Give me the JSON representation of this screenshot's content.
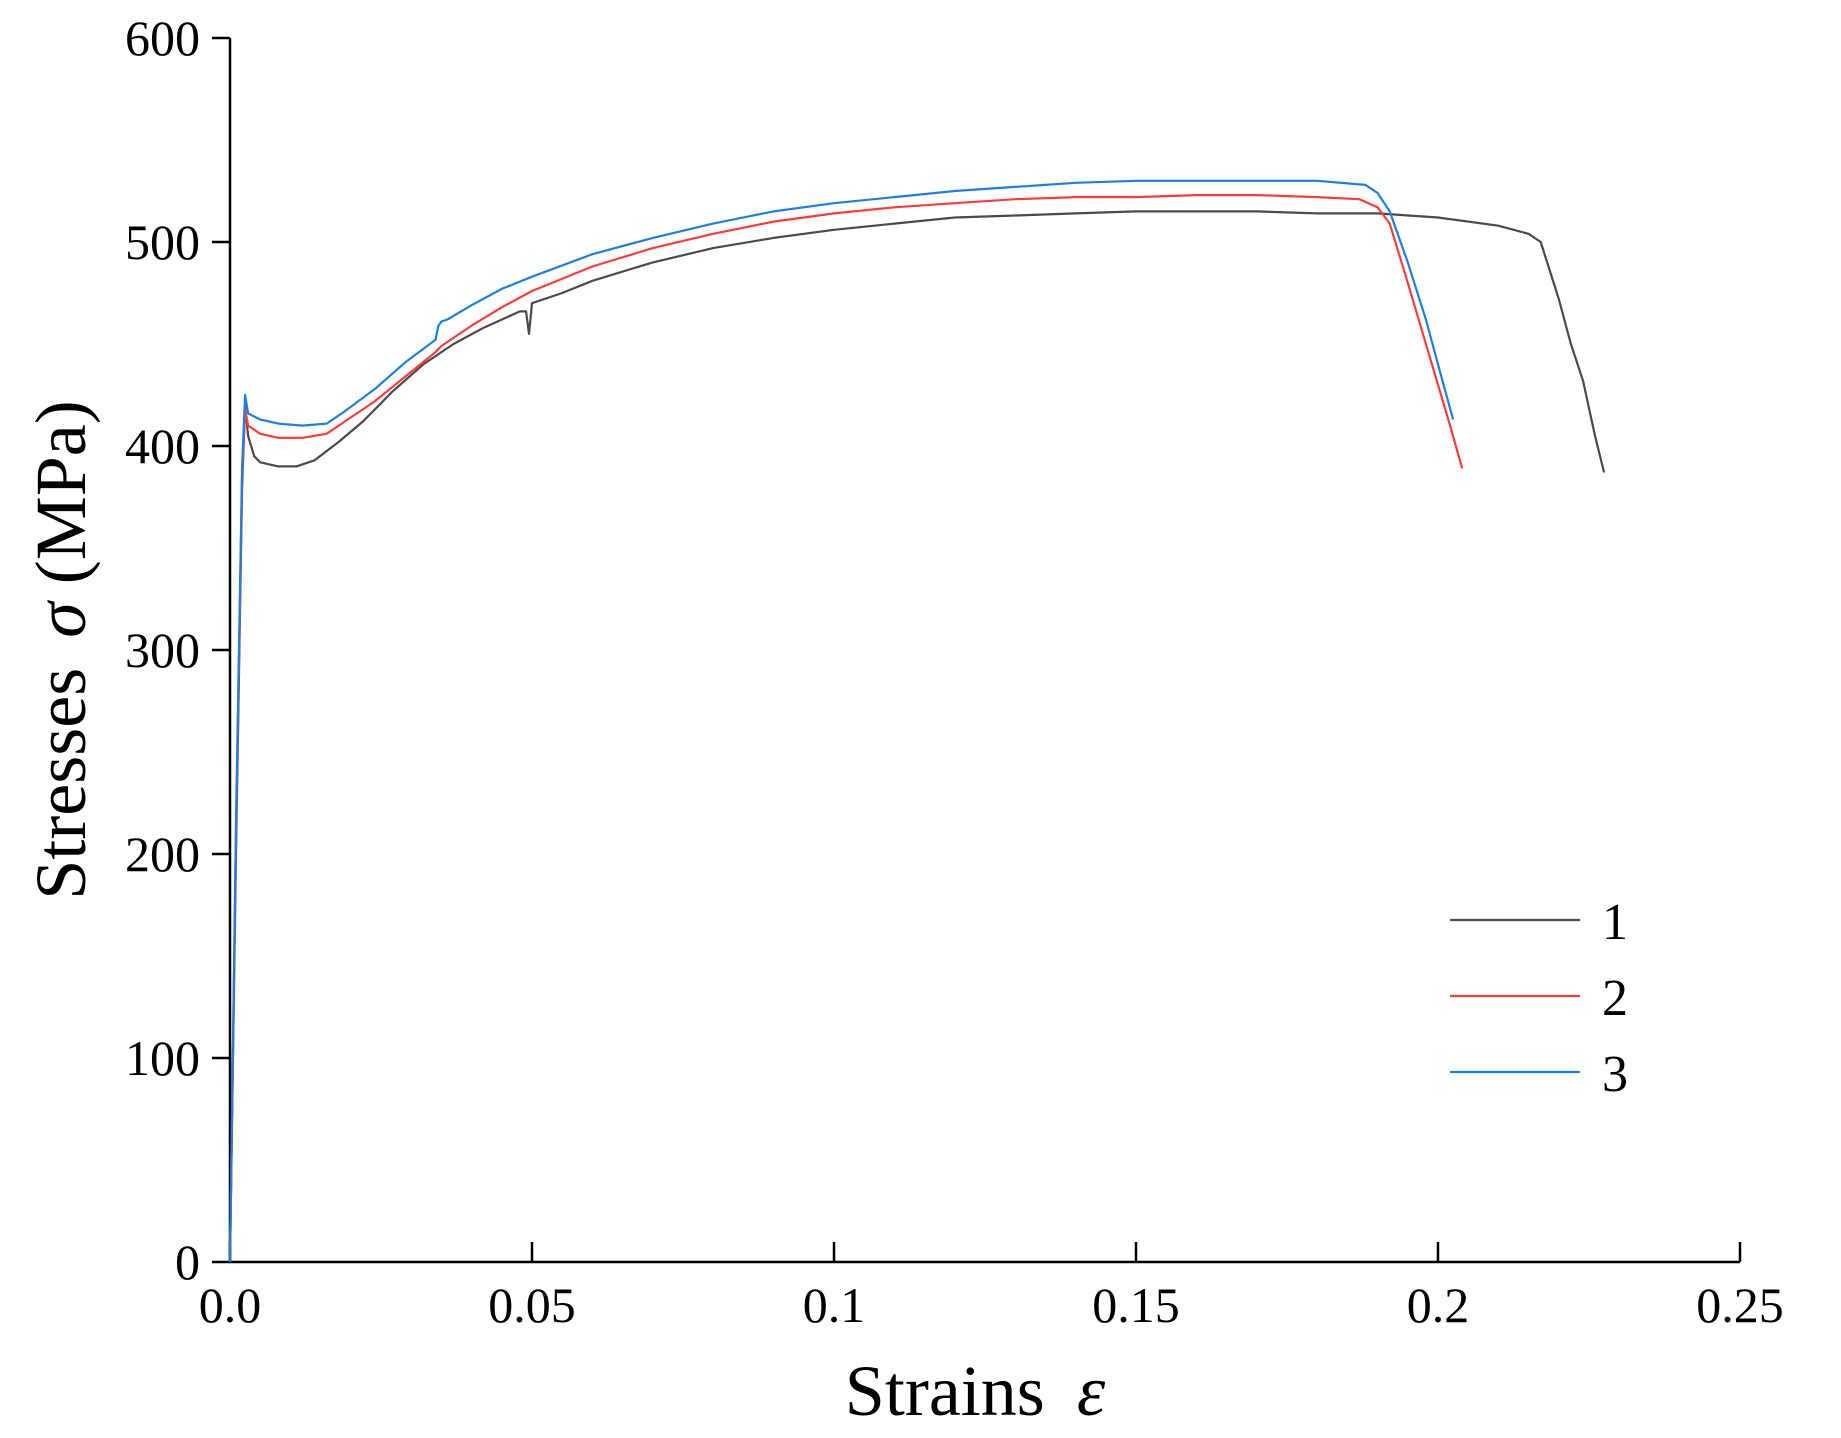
{
  "chart_data": {
    "type": "line",
    "title": "",
    "xlabel": "Strains",
    "xlabel_symbol": "ε",
    "ylabel": "Stresses",
    "ylabel_symbol": "σ",
    "ylabel_unit": "(MPa)",
    "xlim": [
      0,
      0.25
    ],
    "ylim": [
      0,
      600
    ],
    "xticks": [
      0,
      0.05,
      0.1,
      0.15,
      0.2,
      0.25
    ],
    "xtick_labels": [
      "0.0",
      "0.05",
      "0.1",
      "0.15",
      "0.2",
      "0.25"
    ],
    "yticks": [
      0,
      100,
      200,
      300,
      400,
      500,
      600
    ],
    "ytick_labels": [
      "0",
      "100",
      "200",
      "300",
      "400",
      "500",
      "600"
    ],
    "legend_position": "lower-right",
    "series": [
      {
        "name": "1",
        "color": "#4a4a4a",
        "points": [
          [
            0,
            0
          ],
          [
            0.001,
            200
          ],
          [
            0.002,
            380
          ],
          [
            0.0025,
            420
          ],
          [
            0.003,
            405
          ],
          [
            0.004,
            395
          ],
          [
            0.005,
            392
          ],
          [
            0.008,
            390
          ],
          [
            0.011,
            390
          ],
          [
            0.014,
            393
          ],
          [
            0.018,
            402
          ],
          [
            0.022,
            412
          ],
          [
            0.027,
            427
          ],
          [
            0.032,
            440
          ],
          [
            0.037,
            450
          ],
          [
            0.042,
            458
          ],
          [
            0.048,
            466
          ],
          [
            0.049,
            466
          ],
          [
            0.0495,
            455
          ],
          [
            0.05,
            470
          ],
          [
            0.055,
            475
          ],
          [
            0.06,
            481
          ],
          [
            0.07,
            490
          ],
          [
            0.08,
            497
          ],
          [
            0.09,
            502
          ],
          [
            0.1,
            506
          ],
          [
            0.11,
            509
          ],
          [
            0.12,
            512
          ],
          [
            0.13,
            513
          ],
          [
            0.14,
            514
          ],
          [
            0.15,
            515
          ],
          [
            0.16,
            515
          ],
          [
            0.17,
            515
          ],
          [
            0.18,
            514
          ],
          [
            0.19,
            514
          ],
          [
            0.2,
            512
          ],
          [
            0.21,
            508
          ],
          [
            0.215,
            504
          ],
          [
            0.217,
            500
          ],
          [
            0.22,
            472
          ],
          [
            0.222,
            450
          ],
          [
            0.224,
            432
          ],
          [
            0.226,
            405
          ],
          [
            0.2275,
            387
          ]
        ]
      },
      {
        "name": "2",
        "color": "#ff3b3b",
        "points": [
          [
            0,
            0
          ],
          [
            0.001,
            210
          ],
          [
            0.002,
            385
          ],
          [
            0.0025,
            418
          ],
          [
            0.003,
            410
          ],
          [
            0.005,
            406
          ],
          [
            0.008,
            404
          ],
          [
            0.012,
            404
          ],
          [
            0.016,
            406
          ],
          [
            0.019,
            412
          ],
          [
            0.024,
            422
          ],
          [
            0.029,
            434
          ],
          [
            0.034,
            446
          ],
          [
            0.035,
            449
          ],
          [
            0.04,
            459
          ],
          [
            0.045,
            468
          ],
          [
            0.05,
            476
          ],
          [
            0.06,
            488
          ],
          [
            0.07,
            497
          ],
          [
            0.08,
            504
          ],
          [
            0.09,
            510
          ],
          [
            0.1,
            514
          ],
          [
            0.11,
            517
          ],
          [
            0.12,
            519
          ],
          [
            0.13,
            521
          ],
          [
            0.14,
            522
          ],
          [
            0.15,
            522
          ],
          [
            0.16,
            523
          ],
          [
            0.17,
            523
          ],
          [
            0.18,
            522
          ],
          [
            0.187,
            521
          ],
          [
            0.19,
            517
          ],
          [
            0.192,
            509
          ],
          [
            0.195,
            480
          ],
          [
            0.198,
            450
          ],
          [
            0.2,
            430
          ],
          [
            0.202,
            410
          ],
          [
            0.204,
            389
          ]
        ]
      },
      {
        "name": "3",
        "color": "#1e7fe0",
        "points": [
          [
            0,
            0
          ],
          [
            0.001,
            215
          ],
          [
            0.002,
            390
          ],
          [
            0.0025,
            425
          ],
          [
            0.003,
            416
          ],
          [
            0.005,
            413
          ],
          [
            0.008,
            411
          ],
          [
            0.012,
            410
          ],
          [
            0.016,
            411
          ],
          [
            0.019,
            417
          ],
          [
            0.024,
            428
          ],
          [
            0.029,
            441
          ],
          [
            0.034,
            452
          ],
          [
            0.0345,
            459
          ],
          [
            0.035,
            461
          ],
          [
            0.036,
            462
          ],
          [
            0.04,
            469
          ],
          [
            0.045,
            477
          ],
          [
            0.05,
            483
          ],
          [
            0.06,
            494
          ],
          [
            0.07,
            502
          ],
          [
            0.08,
            509
          ],
          [
            0.09,
            515
          ],
          [
            0.1,
            519
          ],
          [
            0.11,
            522
          ],
          [
            0.12,
            525
          ],
          [
            0.13,
            527
          ],
          [
            0.14,
            529
          ],
          [
            0.15,
            530
          ],
          [
            0.16,
            530
          ],
          [
            0.17,
            530
          ],
          [
            0.18,
            530
          ],
          [
            0.188,
            528
          ],
          [
            0.19,
            524
          ],
          [
            0.192,
            515
          ],
          [
            0.195,
            490
          ],
          [
            0.198,
            462
          ],
          [
            0.2,
            440
          ],
          [
            0.2025,
            413
          ]
        ]
      }
    ]
  }
}
